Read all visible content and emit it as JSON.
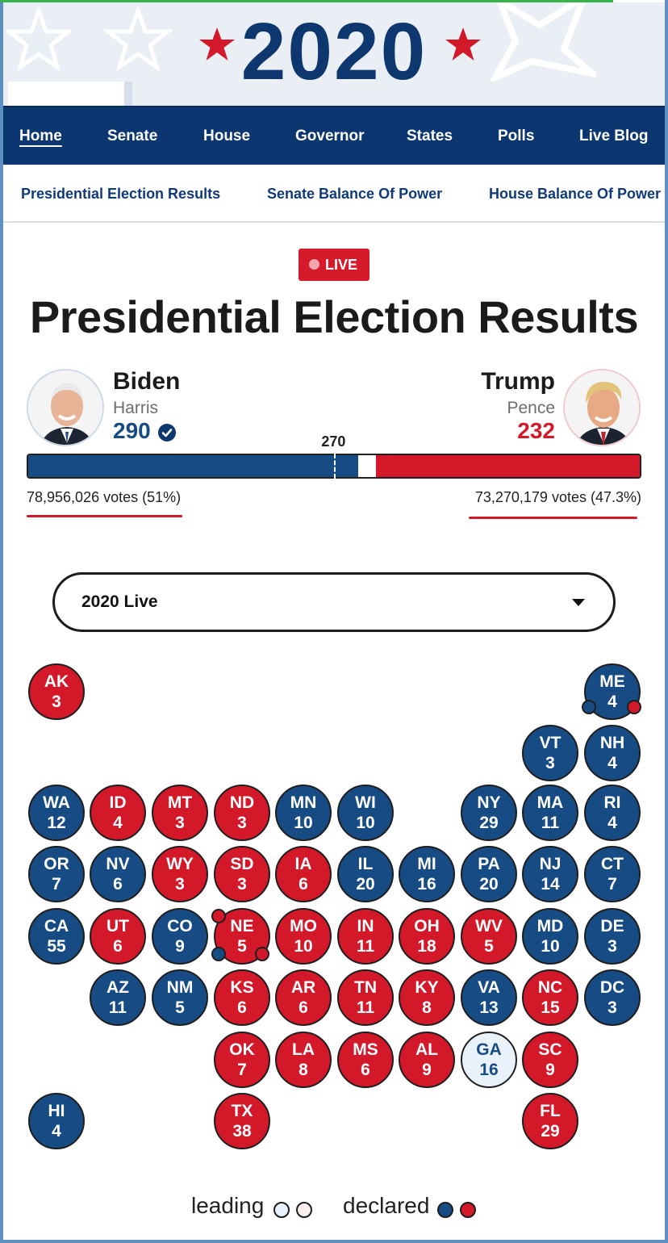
{
  "banner": {
    "year": "2020"
  },
  "nav": {
    "items": [
      {
        "label": "Home",
        "active": true
      },
      {
        "label": "Senate"
      },
      {
        "label": "House"
      },
      {
        "label": "Governor"
      },
      {
        "label": "States"
      },
      {
        "label": "Polls"
      },
      {
        "label": "Live Blog"
      }
    ]
  },
  "subnav": {
    "items": [
      {
        "label": "Presidential Election Results"
      },
      {
        "label": "Senate Balance Of Power"
      },
      {
        "label": "House Balance Of Power"
      }
    ]
  },
  "live_badge": "LIVE",
  "title": "Presidential Election Results",
  "candidates": {
    "dem": {
      "name": "Biden",
      "running_mate": "Harris",
      "electoral_votes": "290",
      "votes": "78,956,026 votes (51%)",
      "color": "#174b83"
    },
    "rep": {
      "name": "Trump",
      "running_mate": "Pence",
      "electoral_votes": "232",
      "votes": "73,270,179 votes (47.3%)",
      "color": "#d3182a"
    }
  },
  "bar": {
    "threshold_label": "270",
    "total": 538,
    "threshold": 270,
    "dem": 290,
    "rep": 232
  },
  "dropdown": {
    "selected": "2020 Live"
  },
  "states": [
    {
      "abbr": "AK",
      "ev": "3",
      "status": "rep"
    },
    {
      "abbr": "ME",
      "ev": "4",
      "status": "dem"
    },
    {
      "abbr": "VT",
      "ev": "3",
      "status": "dem"
    },
    {
      "abbr": "NH",
      "ev": "4",
      "status": "dem"
    },
    {
      "abbr": "WA",
      "ev": "12",
      "status": "dem"
    },
    {
      "abbr": "ID",
      "ev": "4",
      "status": "rep"
    },
    {
      "abbr": "MT",
      "ev": "3",
      "status": "rep"
    },
    {
      "abbr": "ND",
      "ev": "3",
      "status": "rep"
    },
    {
      "abbr": "MN",
      "ev": "10",
      "status": "dem"
    },
    {
      "abbr": "WI",
      "ev": "10",
      "status": "dem"
    },
    {
      "abbr": "NY",
      "ev": "29",
      "status": "dem"
    },
    {
      "abbr": "MA",
      "ev": "11",
      "status": "dem"
    },
    {
      "abbr": "RI",
      "ev": "4",
      "status": "dem"
    },
    {
      "abbr": "OR",
      "ev": "7",
      "status": "dem"
    },
    {
      "abbr": "NV",
      "ev": "6",
      "status": "dem"
    },
    {
      "abbr": "WY",
      "ev": "3",
      "status": "rep"
    },
    {
      "abbr": "SD",
      "ev": "3",
      "status": "rep"
    },
    {
      "abbr": "IA",
      "ev": "6",
      "status": "rep"
    },
    {
      "abbr": "IL",
      "ev": "20",
      "status": "dem"
    },
    {
      "abbr": "MI",
      "ev": "16",
      "status": "dem"
    },
    {
      "abbr": "PA",
      "ev": "20",
      "status": "dem"
    },
    {
      "abbr": "NJ",
      "ev": "14",
      "status": "dem"
    },
    {
      "abbr": "CT",
      "ev": "7",
      "status": "dem"
    },
    {
      "abbr": "CA",
      "ev": "55",
      "status": "dem"
    },
    {
      "abbr": "UT",
      "ev": "6",
      "status": "rep"
    },
    {
      "abbr": "CO",
      "ev": "9",
      "status": "dem"
    },
    {
      "abbr": "NE",
      "ev": "5",
      "status": "rep"
    },
    {
      "abbr": "MO",
      "ev": "10",
      "status": "rep"
    },
    {
      "abbr": "IN",
      "ev": "11",
      "status": "rep"
    },
    {
      "abbr": "OH",
      "ev": "18",
      "status": "rep"
    },
    {
      "abbr": "WV",
      "ev": "5",
      "status": "rep"
    },
    {
      "abbr": "MD",
      "ev": "10",
      "status": "dem"
    },
    {
      "abbr": "DE",
      "ev": "3",
      "status": "dem"
    },
    {
      "abbr": "AZ",
      "ev": "11",
      "status": "dem"
    },
    {
      "abbr": "NM",
      "ev": "5",
      "status": "dem"
    },
    {
      "abbr": "KS",
      "ev": "6",
      "status": "rep"
    },
    {
      "abbr": "AR",
      "ev": "6",
      "status": "rep"
    },
    {
      "abbr": "TN",
      "ev": "11",
      "status": "rep"
    },
    {
      "abbr": "KY",
      "ev": "8",
      "status": "rep"
    },
    {
      "abbr": "VA",
      "ev": "13",
      "status": "dem"
    },
    {
      "abbr": "NC",
      "ev": "15",
      "status": "rep"
    },
    {
      "abbr": "DC",
      "ev": "3",
      "status": "dem"
    },
    {
      "abbr": "OK",
      "ev": "7",
      "status": "rep"
    },
    {
      "abbr": "LA",
      "ev": "8",
      "status": "rep"
    },
    {
      "abbr": "MS",
      "ev": "6",
      "status": "rep"
    },
    {
      "abbr": "AL",
      "ev": "9",
      "status": "rep"
    },
    {
      "abbr": "GA",
      "ev": "16",
      "status": "lead-dem"
    },
    {
      "abbr": "SC",
      "ev": "9",
      "status": "rep"
    },
    {
      "abbr": "HI",
      "ev": "4",
      "status": "dem"
    },
    {
      "abbr": "TX",
      "ev": "38",
      "status": "rep"
    },
    {
      "abbr": "FL",
      "ev": "29",
      "status": "rep"
    }
  ],
  "legend": {
    "leading": "leading",
    "declared": "declared"
  },
  "colors": {
    "dem": "#174b83",
    "rep": "#d3182a",
    "nav": "#0c3670",
    "lead_dem": "#e9f1fb",
    "lead_rep": "#fbeeee"
  }
}
